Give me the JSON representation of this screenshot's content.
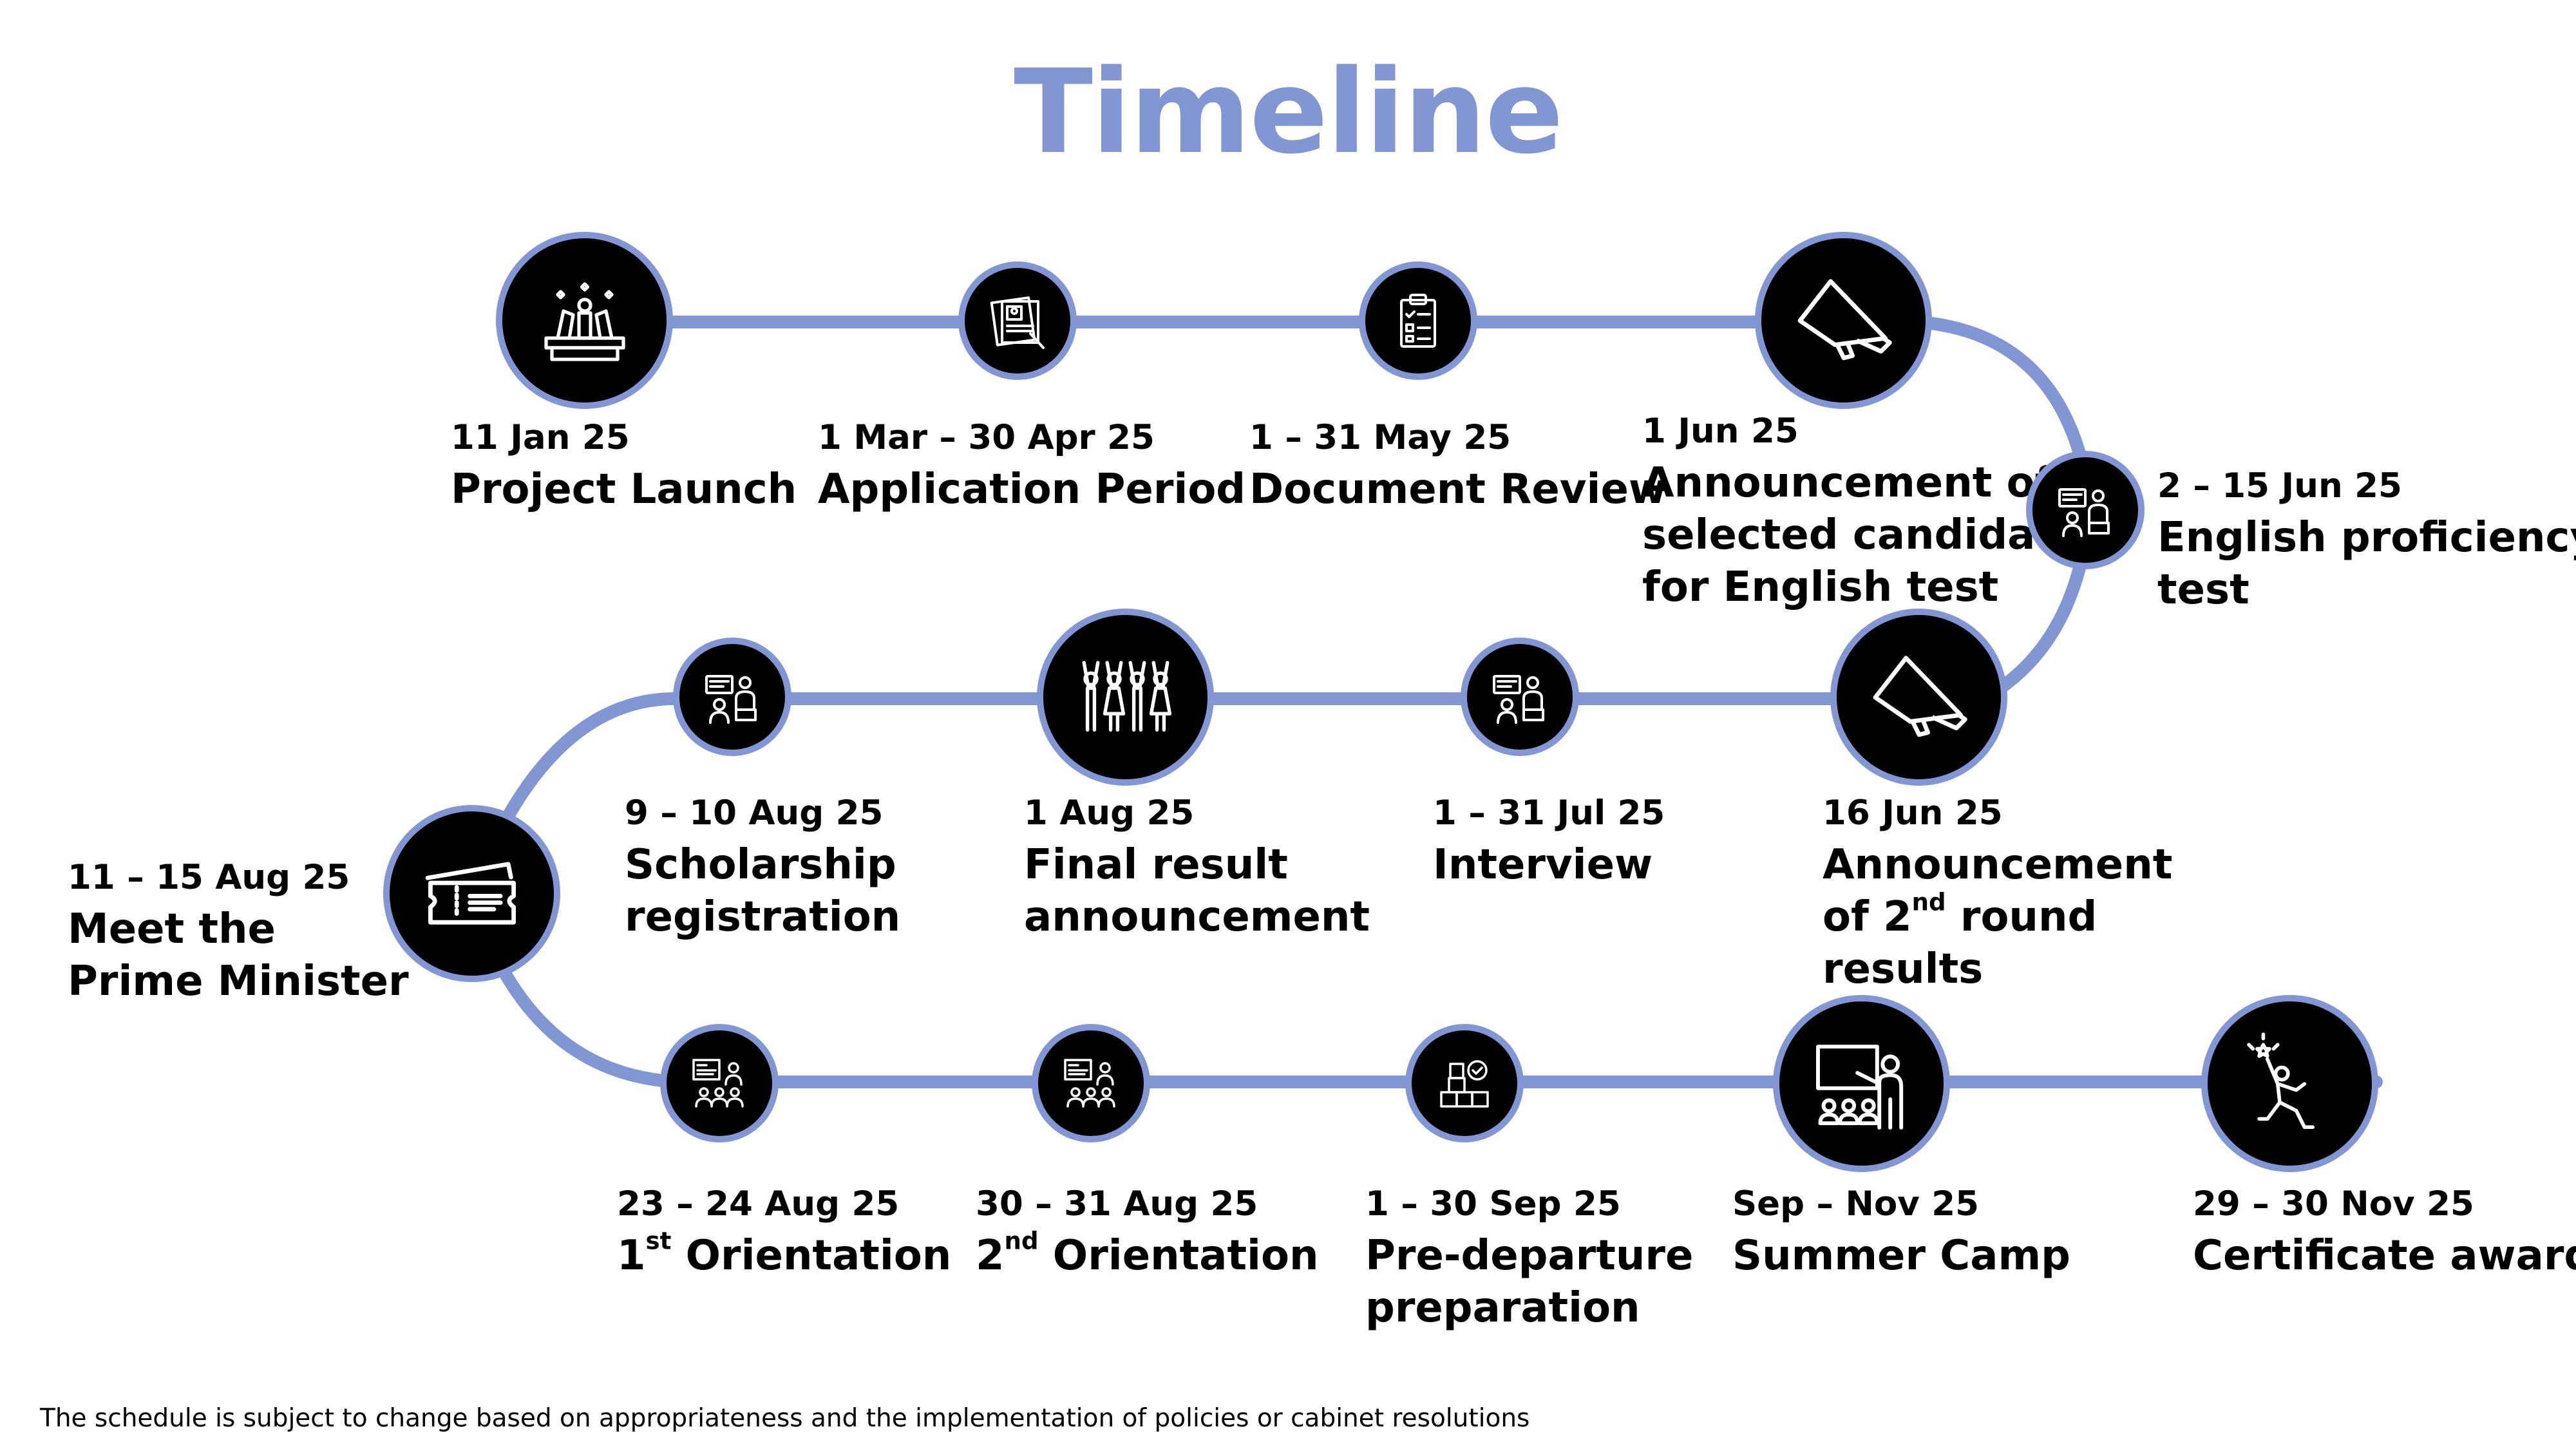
{
  "title": "Timeline",
  "accent_color": "#8396D4",
  "milestones": [
    {
      "date": "11 Jan 25",
      "label": "Project Launch",
      "icon": "award-podium-icon"
    },
    {
      "date": "1 Mar – 30 Apr 25",
      "label": "Application Period",
      "icon": "application-form-icon"
    },
    {
      "date": "1 – 31 May 25",
      "label": "Document Review",
      "icon": "checklist-clipboard-icon"
    },
    {
      "date": "1 Jun 25",
      "label_lines": [
        "Announcement of",
        "selected candidates",
        "for English test"
      ],
      "icon": "megaphone-icon"
    },
    {
      "date": "2 – 15 Jun 25",
      "label_lines": [
        "English proficiency",
        "test"
      ],
      "icon": "presenter-icon"
    },
    {
      "date": "16 Jun 25",
      "label_line1": "Announcement",
      "label_line2_pre": "of 2",
      "label_line2_sup": "nd",
      "label_line2_post": " round",
      "label_line3": "results",
      "icon": "megaphone-icon"
    },
    {
      "date": "1 – 31 Jul 25",
      "label": "Interview",
      "icon": "interview-icon"
    },
    {
      "date": "1 Aug 25",
      "label_lines": [
        "Final result",
        "announcement"
      ],
      "icon": "celebrating-people-icon"
    },
    {
      "date": "9 – 10 Aug 25",
      "label_lines": [
        "Scholarship",
        "registration"
      ],
      "icon": "registration-icon"
    },
    {
      "date": "11 – 15 Aug 25",
      "label_lines": [
        "Meet the",
        "Prime Minister"
      ],
      "icon": "ticket-icon"
    },
    {
      "date": "23 – 24 Aug 25",
      "label_pre": "1",
      "label_sup": "st",
      "label_post": " Orientation",
      "icon": "classroom-icon"
    },
    {
      "date": "30 – 31 Aug 25",
      "label_pre": "2",
      "label_sup": "nd",
      "label_post": " Orientation",
      "icon": "classroom-icon"
    },
    {
      "date": "1 – 30 Sep 25",
      "label_lines": [
        "Pre-departure",
        "preparation"
      ],
      "icon": "boxes-check-icon"
    },
    {
      "date": "Sep – Nov 25",
      "label": "Summer Camp",
      "icon": "teacher-board-icon"
    },
    {
      "date": "29 – 30 Nov 25",
      "label": "Certificate award",
      "icon": "celebrating-person-icon"
    }
  ],
  "footnote": "The schedule is subject to change based on appropriateness and the implementation of policies or cabinet resolutions"
}
